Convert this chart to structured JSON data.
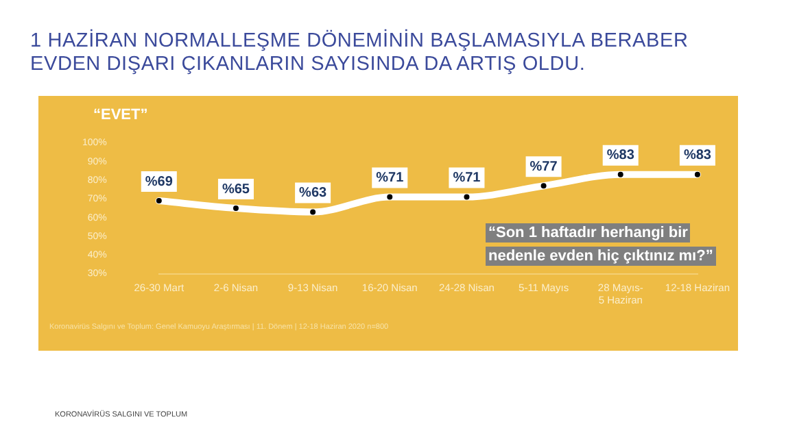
{
  "chart_data": {
    "type": "line",
    "title": "1 HAZİRAN NORMALLEŞME DÖNEMİNİN BAŞLAMASIYLA BERABER EVDEN DIŞARI ÇIKANLARIN SAYISINDA DA ARTIŞ OLDU.",
    "categories": [
      "26-30 Mart",
      "2-6 Nisan",
      "9-13 Nisan",
      "16-20 Nisan",
      "24-28 Nisan",
      "5-11 Mayıs",
      "28 Mayıs-5 Haziran",
      "12-18 Haziran"
    ],
    "series": [
      {
        "color": "#ffffff",
        "values": [
          69,
          65,
          63,
          71,
          71,
          77,
          83,
          83
        ],
        "value_labels": [
          "%69",
          "%65",
          "%63",
          "%71",
          "%71",
          "%77",
          "%83",
          "%83"
        ]
      }
    ],
    "ylim": [
      30,
      100
    ],
    "yticks": [
      {
        "value": 30,
        "label": "30%"
      },
      {
        "value": 40,
        "label": "40%"
      },
      {
        "value": 50,
        "label": "50%"
      },
      {
        "value": 60,
        "label": "60%"
      },
      {
        "value": 70,
        "label": "70%"
      },
      {
        "value": 80,
        "label": "80%"
      },
      {
        "value": 90,
        "label": "90%"
      },
      {
        "value": 100,
        "label": "100%"
      }
    ],
    "grid": false,
    "legend": false,
    "marker": "circle",
    "line_style": "solid",
    "annotations": [
      "“EVET”",
      "“Son 1 haftadır herhangi bir nedenle evden hiç çıktınız mı?”",
      "Koronavirüs Salgını ve Toplum: Genel Kamuoyu Araştırması | 11. Dönem | 12-18 Haziran 2020 n=800",
      "KORONAVİRÜS SALGINI VE TOPLUM"
    ]
  }
}
